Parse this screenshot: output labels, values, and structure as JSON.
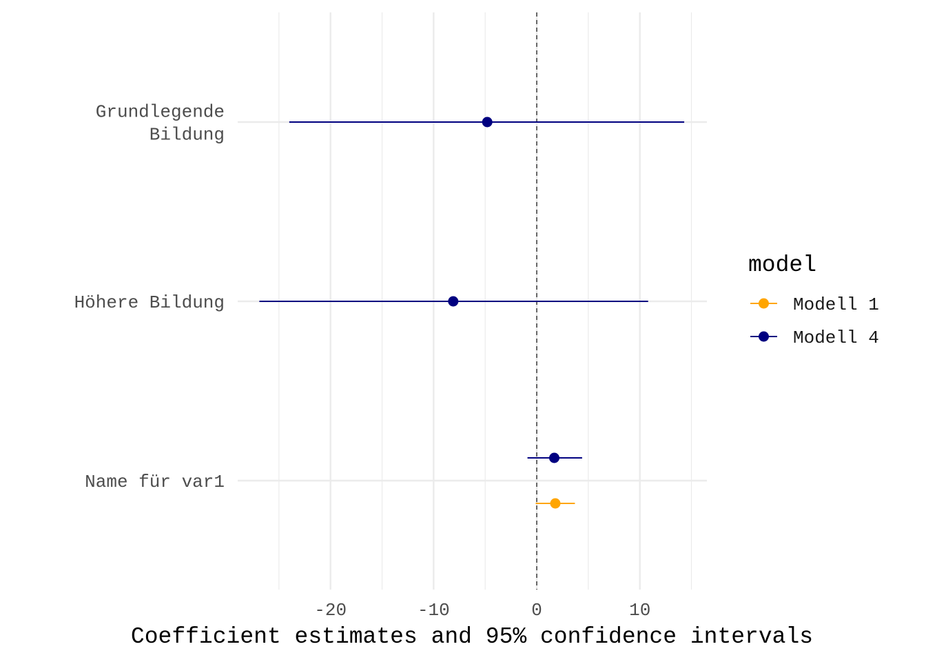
{
  "chart_data": {
    "type": "coefficient-plot",
    "title": "",
    "xlabel": "Coefficient estimates and 95% confidence intervals",
    "ylabel": "",
    "xlim": [
      -29,
      16.5
    ],
    "x_ticks": [
      -20,
      -10,
      0,
      10
    ],
    "x_tick_labels": [
      "-20",
      "-10",
      "0",
      "10"
    ],
    "reference_line": 0,
    "grid": true,
    "categories": [
      "Grundlegende\nBildung",
      "Höhere Bildung",
      "Name für var1"
    ],
    "series": [
      {
        "name": "Modell 1",
        "color": "#FFA500",
        "points": [
          {
            "term": "Name für var1",
            "estimate": 1.8,
            "conf_low": -0.1,
            "conf_high": 3.7
          }
        ]
      },
      {
        "name": "Modell 4",
        "color": "#000080",
        "points": [
          {
            "term": "Grundlegende\nBildung",
            "estimate": -4.8,
            "conf_low": -24.0,
            "conf_high": 14.3
          },
          {
            "term": "Höhere Bildung",
            "estimate": -8.1,
            "conf_low": -26.9,
            "conf_high": 10.8
          },
          {
            "term": "Name für var1",
            "estimate": 1.7,
            "conf_low": -0.9,
            "conf_high": 4.4
          }
        ]
      }
    ],
    "legend": {
      "title": "model",
      "position": "right",
      "entries": [
        "Modell 1",
        "Modell 4"
      ]
    }
  }
}
